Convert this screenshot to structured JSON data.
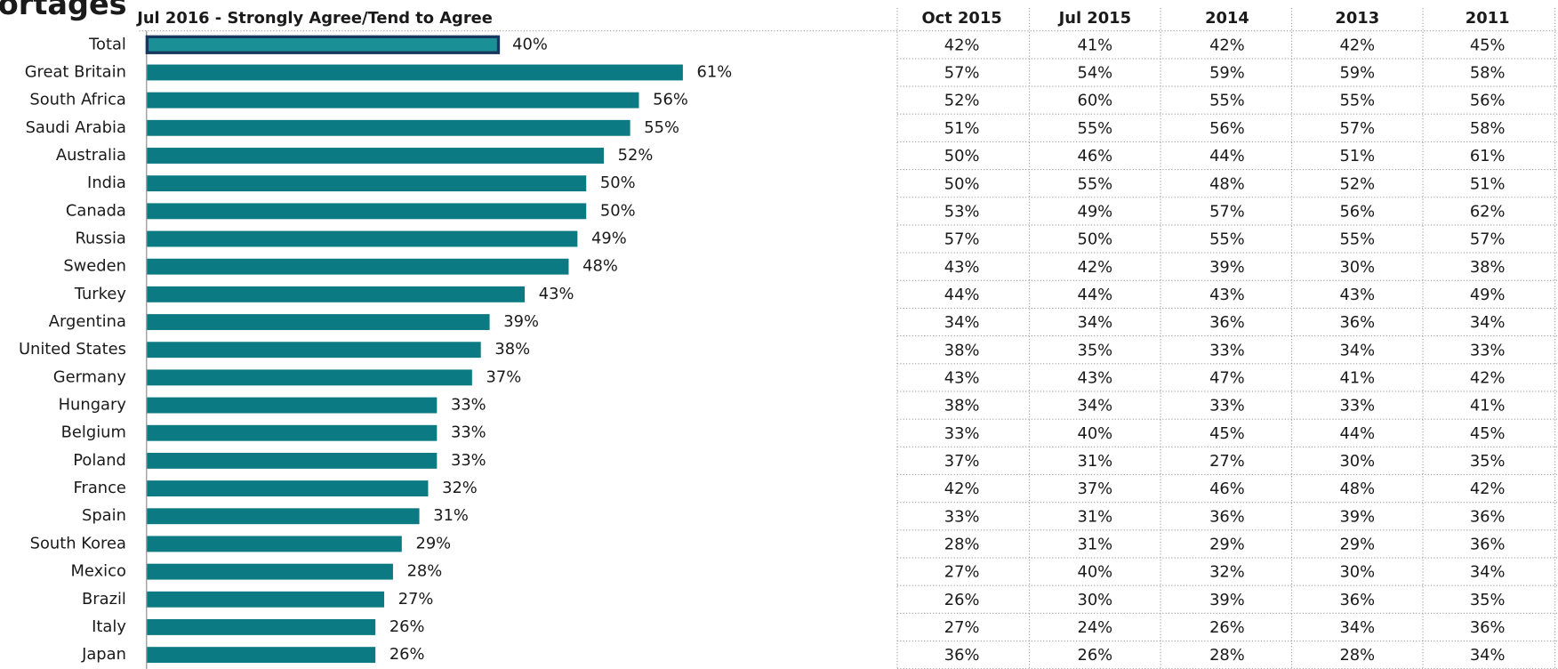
{
  "chart_data": {
    "type": "bar",
    "title": "ortages",
    "subtitle": "Jul 2016 - Strongly Agree/Tend to Agree",
    "categories": [
      "Total",
      "Great Britain",
      "South Africa",
      "Saudi Arabia",
      "Australia",
      "India",
      "Canada",
      "Russia",
      "Sweden",
      "Turkey",
      "Argentina",
      "United States",
      "Germany",
      "Hungary",
      "Belgium",
      "Poland",
      "France",
      "Spain",
      "South Korea",
      "Mexico",
      "Brazil",
      "Italy",
      "Japan"
    ],
    "values": [
      40,
      61,
      56,
      55,
      52,
      50,
      50,
      49,
      48,
      43,
      39,
      38,
      37,
      33,
      33,
      33,
      32,
      31,
      29,
      28,
      27,
      26,
      26
    ],
    "value_labels": [
      "40%",
      "61%",
      "56%",
      "55%",
      "52%",
      "50%",
      "50%",
      "49%",
      "48%",
      "43%",
      "39%",
      "38%",
      "37%",
      "33%",
      "33%",
      "33%",
      "32%",
      "31%",
      "29%",
      "28%",
      "27%",
      "26%",
      "26%"
    ],
    "color": "#0b7a82",
    "highlight": "Total",
    "highlight_color": "#17375e",
    "highlight_fill": "#1a8f95",
    "table": {
      "columns": [
        "Oct 2015",
        "Jul 2015",
        "2014",
        "2013",
        "2011"
      ],
      "rows": [
        [
          "42%",
          "41%",
          "42%",
          "42%",
          "45%"
        ],
        [
          "57%",
          "54%",
          "59%",
          "59%",
          "58%"
        ],
        [
          "52%",
          "60%",
          "55%",
          "55%",
          "56%"
        ],
        [
          "51%",
          "55%",
          "56%",
          "57%",
          "58%"
        ],
        [
          "50%",
          "46%",
          "44%",
          "51%",
          "61%"
        ],
        [
          "50%",
          "55%",
          "48%",
          "52%",
          "51%"
        ],
        [
          "53%",
          "49%",
          "57%",
          "56%",
          "62%"
        ],
        [
          "57%",
          "50%",
          "55%",
          "55%",
          "57%"
        ],
        [
          "43%",
          "42%",
          "39%",
          "30%",
          "38%"
        ],
        [
          "44%",
          "44%",
          "43%",
          "43%",
          "49%"
        ],
        [
          "34%",
          "34%",
          "36%",
          "36%",
          "34%"
        ],
        [
          "38%",
          "35%",
          "33%",
          "34%",
          "33%"
        ],
        [
          "43%",
          "43%",
          "47%",
          "41%",
          "42%"
        ],
        [
          "38%",
          "34%",
          "33%",
          "33%",
          "41%"
        ],
        [
          "33%",
          "40%",
          "45%",
          "44%",
          "45%"
        ],
        [
          "37%",
          "31%",
          "27%",
          "30%",
          "35%"
        ],
        [
          "42%",
          "37%",
          "46%",
          "48%",
          "42%"
        ],
        [
          "33%",
          "31%",
          "36%",
          "39%",
          "36%"
        ],
        [
          "28%",
          "31%",
          "29%",
          "29%",
          "36%"
        ],
        [
          "27%",
          "40%",
          "32%",
          "30%",
          "34%"
        ],
        [
          "26%",
          "30%",
          "39%",
          "36%",
          "35%"
        ],
        [
          "27%",
          "24%",
          "26%",
          "34%",
          "36%"
        ],
        [
          "36%",
          "26%",
          "28%",
          "28%",
          "34%"
        ]
      ]
    }
  }
}
